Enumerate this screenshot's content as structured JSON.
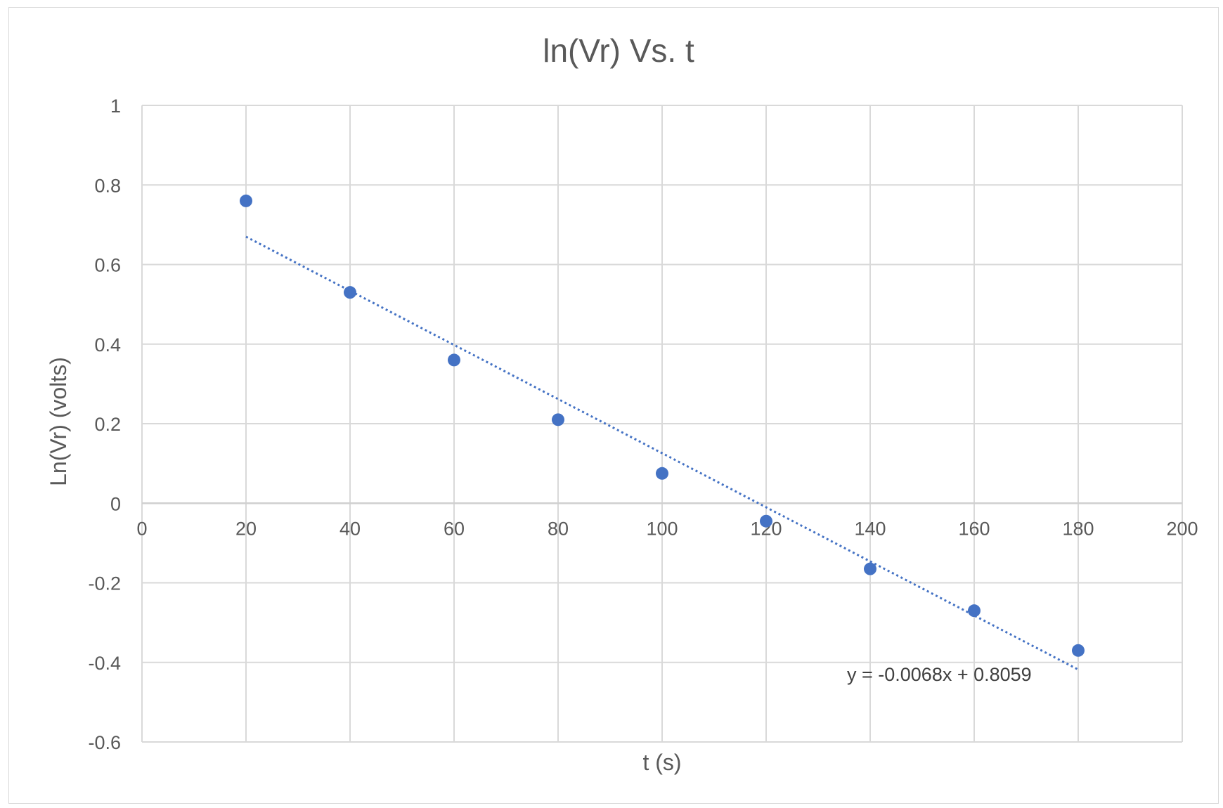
{
  "chart_data": {
    "type": "scatter",
    "title": "ln(Vr) Vs. t",
    "xlabel": "t (s)",
    "ylabel": "Ln(Vr)  (volts)",
    "xlim": [
      0,
      200
    ],
    "ylim": [
      -0.6,
      1
    ],
    "x_ticks": [
      0,
      20,
      40,
      60,
      80,
      100,
      120,
      140,
      160,
      180,
      200
    ],
    "y_ticks": [
      -0.6,
      -0.4,
      -0.2,
      0,
      0.2,
      0.4,
      0.6,
      0.8,
      1
    ],
    "x_tick_labels": [
      "0",
      "20",
      "40",
      "60",
      "80",
      "100",
      "120",
      "140",
      "160",
      "180",
      "200"
    ],
    "y_tick_labels": [
      "-0.6",
      "-0.4",
      "-0.2",
      "0",
      "0.2",
      "0.4",
      "0.6",
      "0.8",
      "1"
    ],
    "grid": true,
    "series": [
      {
        "x": [
          20,
          40,
          60,
          80,
          100,
          120,
          140,
          160,
          180
        ],
        "y": [
          0.76,
          0.53,
          0.36,
          0.21,
          0.075,
          -0.045,
          -0.165,
          -0.27,
          -0.37
        ],
        "color": "#4472c4"
      }
    ],
    "trendline": {
      "slope": -0.0068,
      "intercept": 0.8059,
      "x_range": [
        20,
        180
      ],
      "equation": "y = -0.0068x + 0.8059",
      "color": "#4472c4",
      "style": "dotted"
    }
  }
}
